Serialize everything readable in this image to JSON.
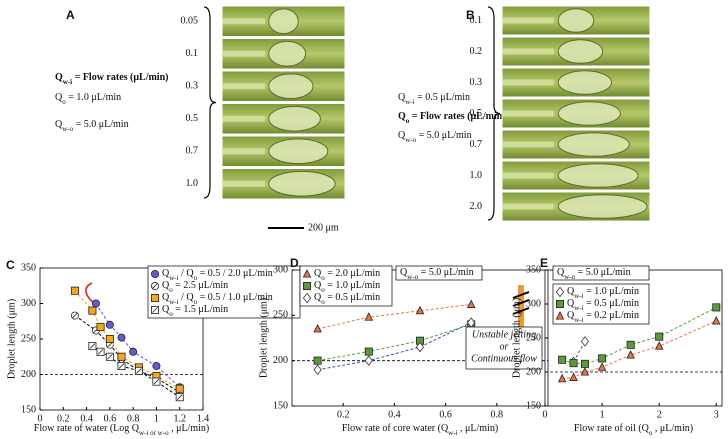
{
  "panels": [
    {
      "label": "A",
      "params": [
        {
          "parts": [
            "Q",
            "w-i",
            " = Flow rates (μL/min)"
          ],
          "bold": true
        },
        {
          "parts": [
            "Q",
            "o",
            " = 1.0 μL/min"
          ],
          "bold": false
        },
        {
          "parts": [
            "Q",
            "w-o",
            " = 5.0 μL/min"
          ],
          "bold": false
        }
      ],
      "images": [
        "0.05",
        "0.1",
        "0.3",
        "0.5",
        "0.7",
        "1.0"
      ],
      "scale_bar": "200 μm"
    },
    {
      "label": "B",
      "params": [
        {
          "parts": [
            "Q",
            "w-i",
            " = 0.5 μL/min"
          ],
          "bold": false
        },
        {
          "parts": [
            "Q",
            "o",
            " = Flow rates (μL/min)"
          ],
          "bold": true
        },
        {
          "parts": [
            "Q",
            "w-o",
            " = 5.0 μL/min"
          ],
          "bold": false
        }
      ],
      "images": [
        "0.1",
        "0.2",
        "0.3",
        "0.5",
        "0.7",
        "1.0",
        "2.0"
      ]
    }
  ],
  "chart_data": [
    {
      "type": "scatter",
      "label": "C",
      "xlabel": [
        "Flow rate of water (Log Q",
        "w-i or w-o",
        " , μL/min)"
      ],
      "ylabel": "Droplet length (μm)",
      "xlim": [
        0,
        1.4
      ],
      "xticks": [
        0,
        0.2,
        0.4,
        0.6,
        0.8,
        1,
        1.2,
        1.4
      ],
      "ylim": [
        150,
        350
      ],
      "yticks": [
        150,
        200,
        250,
        300,
        350
      ],
      "hline": 200,
      "series": [
        {
          "name": [
            "Q",
            "w-i",
            " / Q",
            "o",
            " = 0.5 / 2.0 μL/min"
          ],
          "color": "#6a5acd",
          "marker": "circle",
          "x": [
            0.48,
            0.6,
            0.7,
            0.8,
            1.0,
            1.2
          ],
          "values": [
            300,
            270,
            252,
            232,
            212,
            182
          ]
        },
        {
          "name": [
            "Q",
            "o",
            " = 2.5 μL/min"
          ],
          "color": "#000000",
          "marker": "circle-hatched",
          "x": [
            0.3,
            0.48,
            0.6,
            0.7,
            0.85,
            1.0,
            1.2
          ],
          "values": [
            283,
            262,
            242,
            222,
            205,
            195,
            175
          ]
        },
        {
          "name": [
            "Q",
            "w-i",
            " / Q",
            "o",
            " = 0.5 / 1.0 μL/min"
          ],
          "color": "#f5a623",
          "marker": "square",
          "x": [
            0.3,
            0.45,
            0.52,
            0.6,
            0.7,
            0.85,
            1.0,
            1.2
          ],
          "values": [
            318,
            290,
            267,
            250,
            225,
            210,
            198,
            180
          ]
        },
        {
          "name": [
            "Q",
            "o",
            " = 1.5 μL/min"
          ],
          "color": "#000000",
          "marker": "square-hatched",
          "x": [
            0.45,
            0.52,
            0.6,
            0.7,
            0.85,
            1.0,
            1.2
          ],
          "values": [
            240,
            232,
            225,
            212,
            205,
            190,
            168
          ]
        }
      ]
    },
    {
      "type": "scatter",
      "label": "D",
      "xlabel": [
        "Flow rate of core water (Q",
        "w-i",
        " , μL/min)"
      ],
      "ylabel": "Droplet length (μm)",
      "xlim": [
        0,
        1.0
      ],
      "xticks": [
        0.2,
        0.4,
        0.6,
        0.8
      ],
      "ylim": [
        150,
        300
      ],
      "yticks": [
        150,
        200,
        250,
        300
      ],
      "hline": 200,
      "note": [
        "Q",
        "w-o",
        " = 5.0 μL/min"
      ],
      "annotation": [
        "Unstable jetting",
        "or",
        "Continuous flow"
      ],
      "series": [
        {
          "name": [
            "Q",
            "o",
            " = 2.0 μL/min"
          ],
          "color": "#e8734a",
          "marker": "triangle",
          "x": [
            0.1,
            0.3,
            0.5,
            0.7
          ],
          "values": [
            235,
            248,
            255,
            262
          ]
        },
        {
          "name": [
            "Q",
            "o",
            " = 1.0 μL/min"
          ],
          "color": "#5a9a3c",
          "marker": "square",
          "x": [
            0.1,
            0.3,
            0.5,
            0.7
          ],
          "values": [
            200,
            210,
            222,
            240
          ]
        },
        {
          "name": [
            "Q",
            "o",
            " = 0.5 μL/min"
          ],
          "color": "#3355bb",
          "marker": "diamond",
          "x": [
            0.1,
            0.3,
            0.5,
            0.7
          ],
          "values": [
            190,
            200,
            215,
            242
          ]
        }
      ]
    },
    {
      "type": "scatter",
      "label": "E",
      "xlabel": [
        "Flow rate of oil (Q",
        "o",
        " , μL/min)"
      ],
      "ylabel": "Droplet length (μm)",
      "xlim": [
        0,
        3.1
      ],
      "xticks": [
        0,
        1,
        2,
        3
      ],
      "ylim": [
        150,
        350
      ],
      "yticks": [
        150,
        200,
        250,
        300,
        350
      ],
      "hline": 200,
      "note": [
        "Q",
        "w-o",
        " = 5.0 μL/min"
      ],
      "series": [
        {
          "name": [
            "Q",
            "w-i",
            " = 1.0 μL/min"
          ],
          "color": "#3355bb",
          "marker": "diamond",
          "x": [
            0.5,
            0.7
          ],
          "values": [
            215,
            245
          ]
        },
        {
          "name": [
            "Q",
            "w-i",
            " = 0.5 μL/min"
          ],
          "color": "#5a9a3c",
          "marker": "square",
          "x": [
            0.3,
            0.5,
            0.7,
            1.0,
            1.5,
            2,
            3
          ],
          "values": [
            218,
            213,
            212,
            220,
            240,
            252,
            295
          ]
        },
        {
          "name": [
            "Q",
            "w-i",
            " = 0.2 μL/min"
          ],
          "color": "#e8734a",
          "marker": "triangle",
          "x": [
            0.3,
            0.5,
            0.7,
            1.0,
            1.5,
            2,
            3
          ],
          "values": [
            190,
            192,
            200,
            207,
            225,
            238,
            275
          ]
        }
      ]
    }
  ]
}
